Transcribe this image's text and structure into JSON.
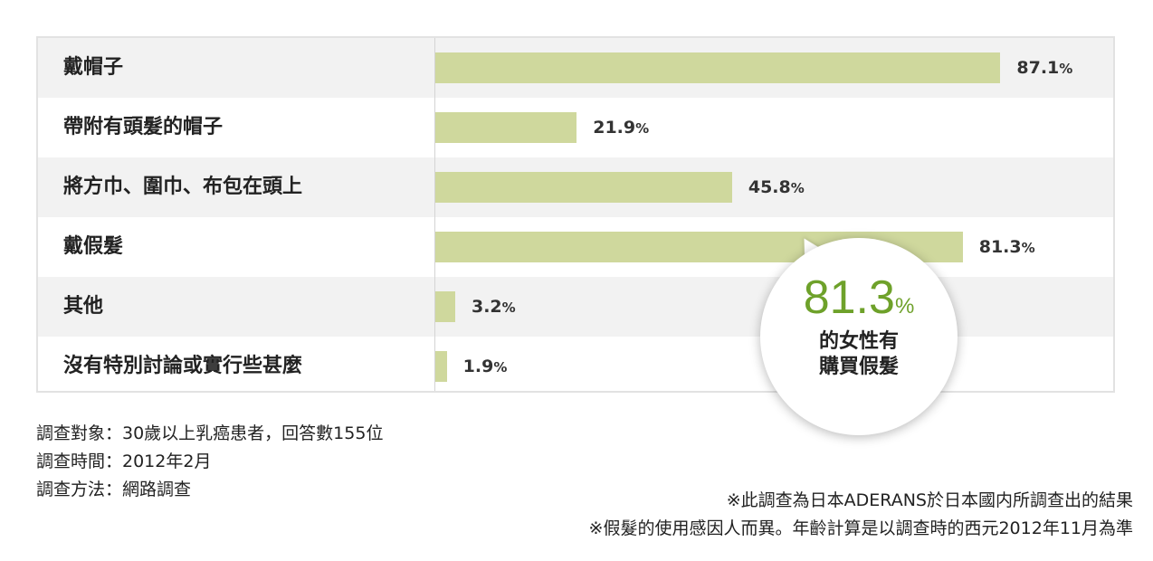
{
  "chart_data": {
    "type": "bar",
    "orientation": "horizontal",
    "categories": [
      "戴帽子",
      "帶附有頭髮的帽子",
      "將方巾、圍巾、布包在頭上",
      "戴假髮",
      "其他",
      "沒有特別討論或實行些甚麼"
    ],
    "values": [
      87.1,
      21.9,
      45.8,
      81.3,
      3.2,
      1.9
    ],
    "value_labels": [
      "87.1",
      "21.9",
      "45.8",
      "81.3",
      "3.2",
      "1.9"
    ],
    "unit": "%",
    "xlim": [
      0,
      100
    ],
    "bar_color": "#cfd89d",
    "title": "",
    "xlabel": "",
    "ylabel": ""
  },
  "callout": {
    "value": "81.3",
    "unit": "%",
    "line1": "的女性有",
    "line2": "購買假髮",
    "color": "#6ea12a"
  },
  "notes_left": [
    "調查對象：30歲以上乳癌患者，回答數155位",
    "調查時間：2012年2月",
    "調查方法：網路調查"
  ],
  "notes_right": [
    "※此調查為日本ADERANS於日本國内所調查出的結果",
    "※假髮的使用感因人而異。年齡計算是以調查時的西元2012年11月為準"
  ]
}
